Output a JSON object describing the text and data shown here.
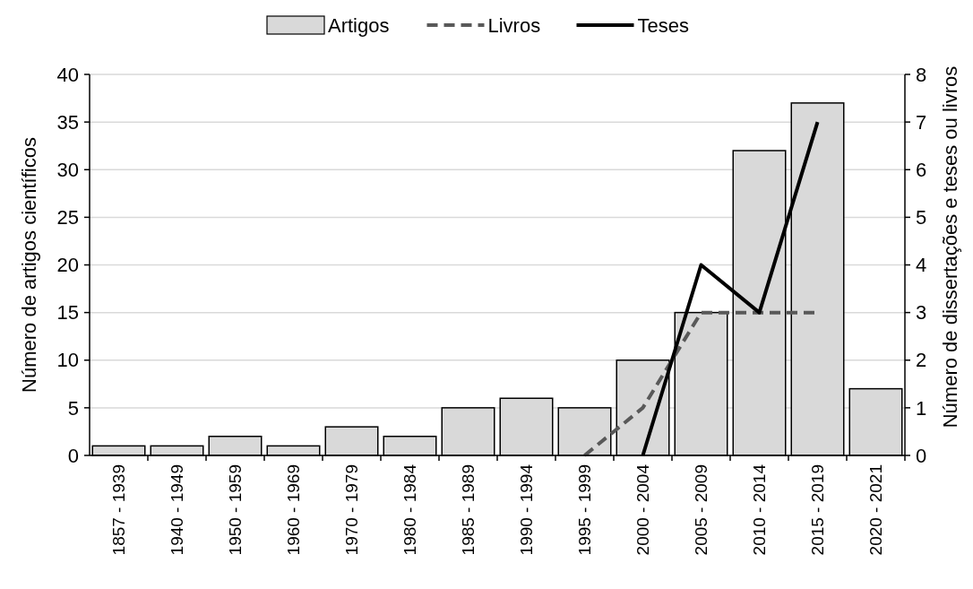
{
  "chart_data": {
    "type": "bar",
    "categories": [
      "1857 - 1939",
      "1940 - 1949",
      "1950 - 1959",
      "1960 - 1969",
      "1970 - 1979",
      "1980 - 1984",
      "1985 - 1989",
      "1990 - 1994",
      "1995 - 1999",
      "2000 - 2004",
      "2005 - 2009",
      "2010 - 2014",
      "2015 - 2019",
      "2020 - 2021"
    ],
    "ylabel": "Número de artigos científicos",
    "y2label": "Número de dissertações e teses ou livros",
    "ylim": [
      0,
      40
    ],
    "yticks": [
      0,
      5,
      10,
      15,
      20,
      25,
      30,
      35,
      40
    ],
    "y2lim": [
      0,
      8
    ],
    "y2ticks": [
      0,
      1,
      2,
      3,
      4,
      5,
      6,
      7,
      8
    ],
    "grid": "y",
    "legend": "top",
    "series": [
      {
        "name": "Artigos",
        "color": "#d9d9d9",
        "values": [
          1,
          1,
          2,
          1,
          3,
          2,
          5,
          6,
          5,
          10,
          15,
          32,
          37,
          7
        ]
      },
      {
        "name": "Livros",
        "type": "line",
        "axis": "y2",
        "color": "#595959",
        "line_style": "dashed",
        "values": [
          null,
          null,
          null,
          null,
          null,
          null,
          null,
          null,
          0,
          1,
          3,
          3,
          3,
          null
        ]
      },
      {
        "name": "Teses",
        "type": "line",
        "axis": "y2",
        "color": "#000000",
        "line_style": "solid",
        "values": [
          null,
          null,
          null,
          null,
          null,
          null,
          null,
          null,
          null,
          0,
          4,
          3,
          7,
          null
        ]
      }
    ]
  }
}
